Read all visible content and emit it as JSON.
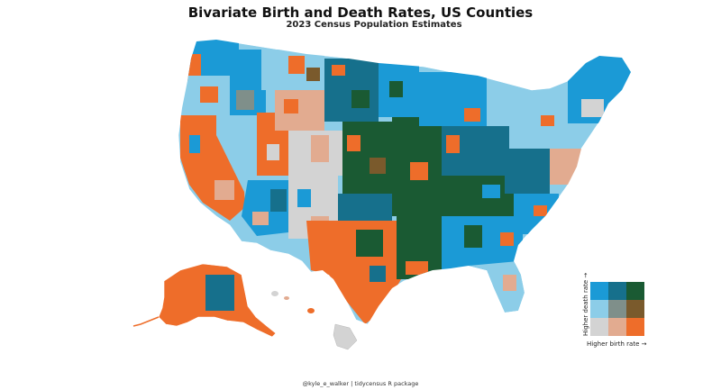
{
  "title": "Bivariate Birth and Death Rates, US Counties",
  "subtitle": "2023 Census Population Estimates",
  "caption": "@kyle_e_walker | tidycensus R package",
  "legend": {
    "x_label": "Higher birth rate →",
    "y_label": "Higher death rate →",
    "grid": [
      [
        "#1b9ad6",
        "#16708c",
        "#1a5a33"
      ],
      [
        "#8ccde8",
        "#7f8f8a",
        "#7a5a2c"
      ],
      [
        "#d3d3d3",
        "#e2ab90",
        "#ee6d2a"
      ]
    ]
  },
  "palette": {
    "low_birth_low_death": "#d3d3d3",
    "mid_birth_low_death": "#e2ab90",
    "high_birth_low_death": "#ee6d2a",
    "low_birth_mid_death": "#8ccde8",
    "mid_birth_mid_death": "#7f8f8a",
    "high_birth_mid_death": "#7a5a2c",
    "low_birth_high_death": "#1b9ad6",
    "mid_birth_high_death": "#16708c",
    "high_birth_high_death": "#1a5a33"
  }
}
